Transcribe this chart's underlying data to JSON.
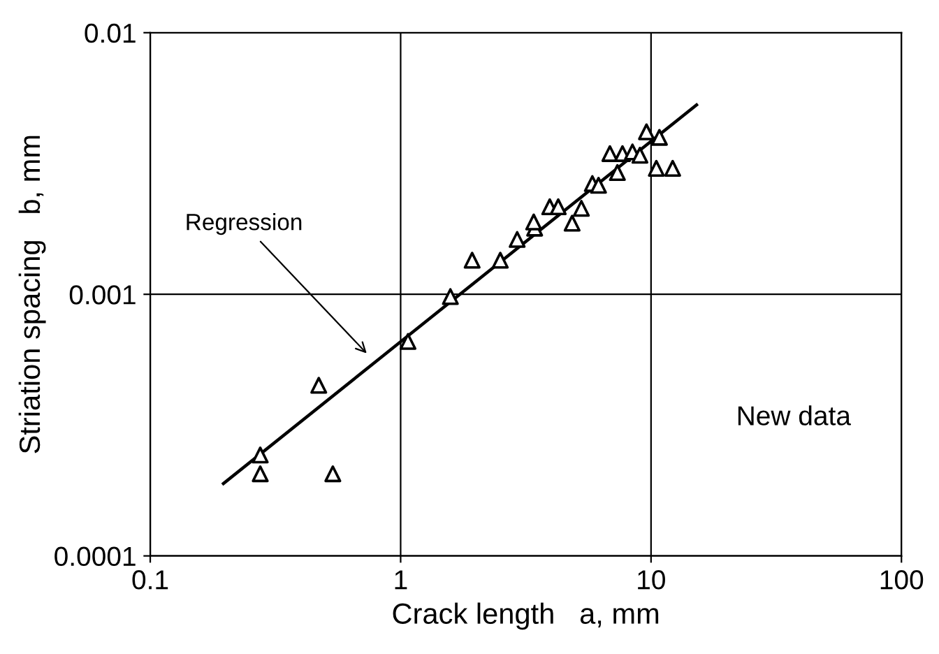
{
  "chart_data": {
    "type": "scatter",
    "xlabel": "Crack length   a, mm",
    "ylabel": "Striation spacing   b, mm",
    "log": "xy",
    "grid": true,
    "xlim": [
      0.1,
      100
    ],
    "ylim": [
      0.0001,
      0.01
    ],
    "xticks": [
      0.1,
      1,
      10,
      100
    ],
    "yticks": [
      0.0001,
      0.001,
      0.01
    ],
    "series": [
      {
        "marker": "triangle",
        "color": "#000000",
        "x": [
          0.275,
          0.275,
          0.471,
          0.536,
          1.07,
          1.58,
          1.93,
          2.5,
          2.92,
          3.43,
          3.4,
          3.94,
          4.26,
          4.84,
          5.27,
          5.83,
          6.17,
          7.34,
          6.85,
          7.69,
          8.43,
          9.03,
          9.59,
          10.8,
          10.5,
          12.2
        ],
        "values": [
          0.000243,
          0.000206,
          0.000449,
          0.000206,
          0.00066,
          0.00098,
          0.00135,
          0.00135,
          0.00162,
          0.00179,
          0.00189,
          0.00216,
          0.00216,
          0.00187,
          0.00213,
          0.00265,
          0.00261,
          0.00292,
          0.00345,
          0.00345,
          0.0035,
          0.0034,
          0.00418,
          0.00398,
          0.00303,
          0.00303
        ]
      },
      {
        "type": "line",
        "marker": "none",
        "color": "#000000",
        "x": [
          0.196,
          15.2
        ],
        "values": [
          0.000189,
          0.0053
        ]
      }
    ],
    "annotations": [
      {
        "text": "Regression",
        "x": 0.75,
        "y": 0.00058
      },
      "New data"
    ]
  }
}
